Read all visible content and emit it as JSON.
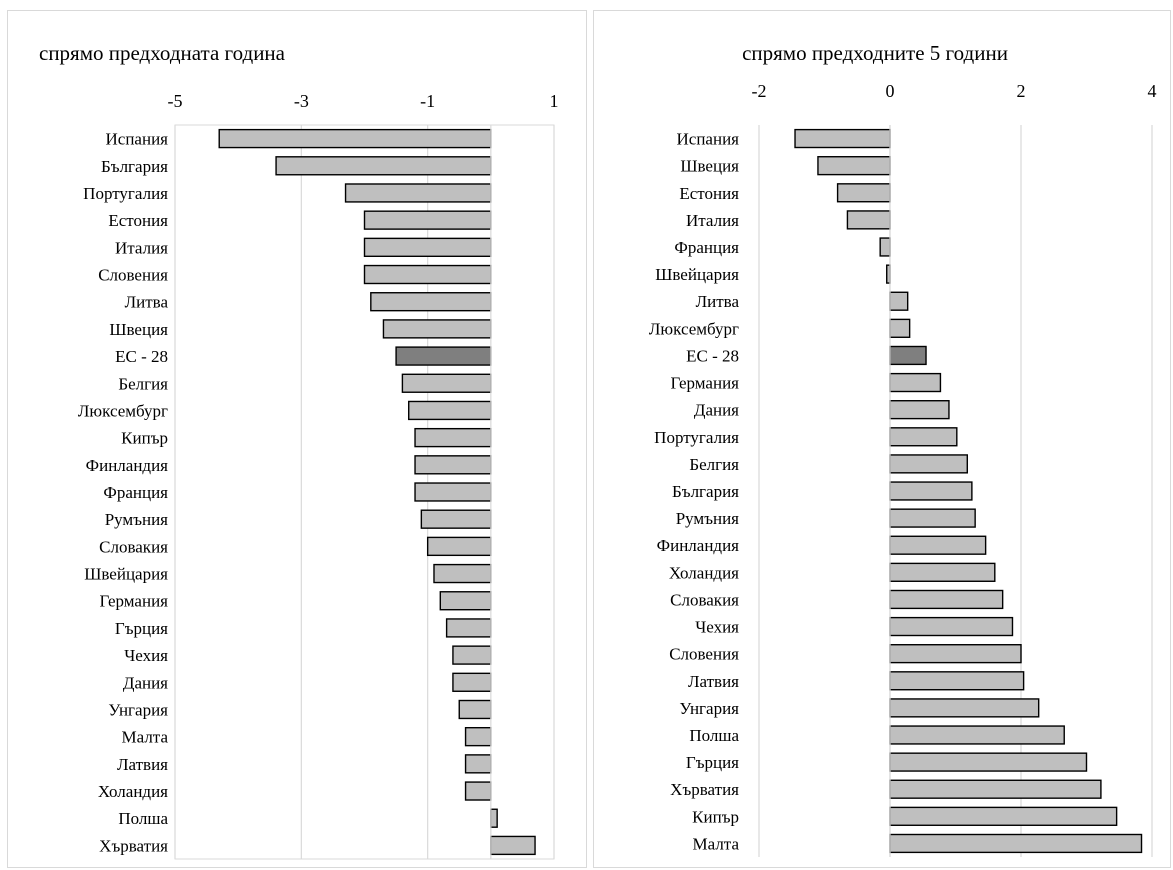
{
  "chart_data": [
    {
      "type": "bar",
      "orientation": "horizontal",
      "title": "спрямо предходната година",
      "xlim": [
        -5,
        1
      ],
      "xticks": [
        "-5",
        "-3",
        "-1",
        "1"
      ],
      "grid": true,
      "colors": {
        "default": "#bfbfbf",
        "highlight": "#7f7f7f"
      },
      "highlight": "ЕС - 28",
      "categories": [
        "Испания",
        "България",
        "Португалия",
        "Естония",
        "Италия",
        "Словения",
        "Литва",
        "Швеция",
        "ЕС - 28",
        "Белгия",
        "Люксембург",
        "Кипър",
        "Финландия",
        "Франция",
        "Румъния",
        "Словакия",
        "Швейцария",
        "Германия",
        "Гърция",
        "Чехия",
        "Дания",
        "Унгария",
        "Малта",
        "Латвия",
        "Холандия",
        "Полша",
        "Хърватия"
      ],
      "values": [
        -4.3,
        -3.4,
        -2.3,
        -2.0,
        -2.0,
        -2.0,
        -1.9,
        -1.7,
        -1.5,
        -1.4,
        -1.3,
        -1.2,
        -1.2,
        -1.2,
        -1.1,
        -1.0,
        -0.9,
        -0.8,
        -0.7,
        -0.6,
        -0.6,
        -0.5,
        -0.4,
        -0.4,
        -0.4,
        0.1,
        0.7
      ]
    },
    {
      "type": "bar",
      "orientation": "horizontal",
      "title": "спрямо предходните 5 години",
      "xlim": [
        -2,
        4
      ],
      "xticks": [
        "-2",
        "0",
        "2",
        "4"
      ],
      "grid": true,
      "colors": {
        "default": "#bfbfbf",
        "highlight": "#7f7f7f"
      },
      "highlight": "ЕС - 28",
      "categories": [
        "Испания",
        "Швеция",
        "Естония",
        "Италия",
        "Франция",
        "Швейцария",
        "Литва",
        "Люксембург",
        "ЕС - 28",
        "Германия",
        "Дания",
        "Португалия",
        "Белгия",
        "България",
        "Румъния",
        "Финландия",
        "Холандия",
        "Словакия",
        "Чехия",
        "Словения",
        "Латвия",
        "Унгария",
        "Полша",
        "Гърция",
        "Хърватия",
        "Кипър",
        "Малта"
      ],
      "values": [
        -1.45,
        -1.1,
        -0.8,
        -0.65,
        -0.15,
        -0.05,
        0.27,
        0.3,
        0.55,
        0.77,
        0.9,
        1.02,
        1.18,
        1.25,
        1.3,
        1.46,
        1.6,
        1.72,
        1.87,
        2.0,
        2.04,
        2.27,
        2.66,
        3.0,
        3.22,
        3.46,
        3.84
      ]
    }
  ]
}
